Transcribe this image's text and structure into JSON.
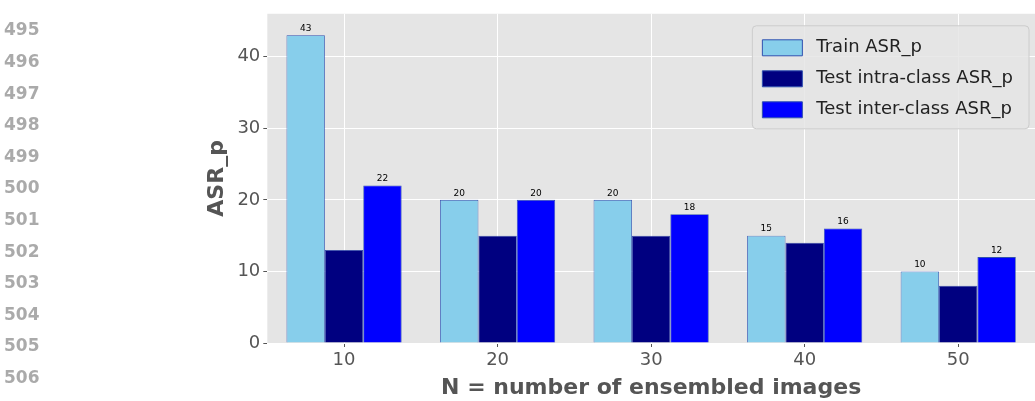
{
  "chart_data": {
    "type": "bar",
    "xlabel": "N = number of ensembled images",
    "ylabel": "ASR_p",
    "categories": [
      "10",
      "20",
      "30",
      "40",
      "50"
    ],
    "series": [
      {
        "name": "Train ASR_p",
        "color": "#87ceeb",
        "values": [
          43,
          20,
          20,
          15,
          10
        ],
        "value_labels": [
          "43",
          "20",
          "20",
          "15",
          "10"
        ]
      },
      {
        "name": "Test intra-class ASR_p",
        "color": "#000080",
        "values": [
          13,
          15,
          15,
          14,
          8
        ]
      },
      {
        "name": "Test inter-class ASR_p",
        "color": "#0000ff",
        "values": [
          22,
          20,
          18,
          16,
          12
        ],
        "value_labels": [
          "22",
          "20",
          "18",
          "16",
          "12"
        ]
      }
    ],
    "ylim": [
      0,
      46
    ],
    "yticks": [
      0,
      10,
      20,
      30,
      40
    ],
    "grid": true,
    "legend": "top right",
    "annotations": [
      "495",
      "496",
      "497",
      "498",
      "499",
      "500",
      "501",
      "502",
      "503",
      "504",
      "505",
      "506"
    ]
  }
}
